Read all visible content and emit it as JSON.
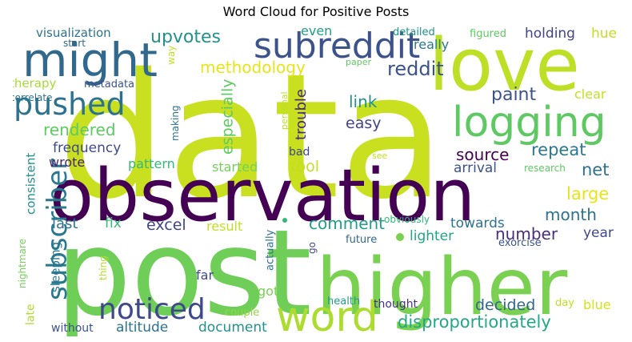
{
  "chart_data": {
    "type": "wordcloud",
    "title": "Word Cloud for Positive Posts",
    "background": "#ffffff",
    "colormap": "viridis",
    "words": [
      {
        "text": "data",
        "color": "#c8e020"
      },
      {
        "text": "post",
        "color": "#6ece58"
      },
      {
        "text": "observation",
        "color": "#440154"
      },
      {
        "text": "higher",
        "color": "#7ad151"
      },
      {
        "text": "love",
        "color": "#bddf26"
      },
      {
        "text": "might",
        "color": "#31688e"
      },
      {
        "text": "logging",
        "color": "#5ec962"
      },
      {
        "text": "subreddit",
        "color": "#3b528b"
      },
      {
        "text": "pushed",
        "color": "#2c728e"
      },
      {
        "text": "subscriber",
        "color": "#2a788e"
      },
      {
        "text": "noticed",
        "color": "#3e4989"
      },
      {
        "text": "word",
        "color": "#addc30"
      },
      {
        "text": "upvotes",
        "color": "#21918c"
      },
      {
        "text": "methodology",
        "color": "#e7e419"
      },
      {
        "text": "reddit",
        "color": "#3b528b"
      },
      {
        "text": "rendered",
        "color": "#5ec962"
      },
      {
        "text": "paint",
        "color": "#3b528b"
      },
      {
        "text": "link",
        "color": "#21918c"
      },
      {
        "text": "trouble",
        "color": "#482878"
      },
      {
        "text": "especially",
        "color": "#5ec962"
      },
      {
        "text": "easy",
        "color": "#414487"
      },
      {
        "text": "source",
        "color": "#440154"
      },
      {
        "text": "repeat",
        "color": "#2a788e"
      },
      {
        "text": "frequency",
        "color": "#3e4989"
      },
      {
        "text": "disproportionately",
        "color": "#22a884"
      },
      {
        "text": "document",
        "color": "#21918c"
      },
      {
        "text": "altitude",
        "color": "#2c728e"
      },
      {
        "text": "decided",
        "color": "#31688e"
      },
      {
        "text": "large",
        "color": "#e7e419"
      },
      {
        "text": "month",
        "color": "#2c728e"
      },
      {
        "text": "comment",
        "color": "#1f9e89"
      },
      {
        "text": "number",
        "color": "#472d7b"
      },
      {
        "text": "excel",
        "color": "#414487"
      },
      {
        "text": "net",
        "color": "#2c728e"
      },
      {
        "text": "tool",
        "color": "#c2df23"
      },
      {
        "text": "pattern",
        "color": "#35b779"
      },
      {
        "text": "wrote",
        "color": "#482173"
      },
      {
        "text": "consistent",
        "color": "#21918c"
      },
      {
        "text": "sleeping",
        "color": "#2a788e"
      },
      {
        "text": "last",
        "color": "#2c728e"
      },
      {
        "text": "fix",
        "color": "#35b779"
      },
      {
        "text": "result",
        "color": "#c2df23"
      },
      {
        "text": "started",
        "color": "#73d056"
      },
      {
        "text": "arrival",
        "color": "#3b528b"
      },
      {
        "text": "towards",
        "color": "#2c728e"
      },
      {
        "text": "lighter",
        "color": "#20a386"
      },
      {
        "text": "year",
        "color": "#3e4989"
      },
      {
        "text": "blue",
        "color": "#d5e21a"
      },
      {
        "text": "got",
        "color": "#7ad151"
      },
      {
        "text": "far",
        "color": "#3e4989"
      },
      {
        "text": "holding",
        "color": "#414487"
      },
      {
        "text": "hue",
        "color": "#c2df23"
      },
      {
        "text": "even",
        "color": "#1f9e89"
      },
      {
        "text": "really",
        "color": "#2a788e"
      },
      {
        "text": "visualization",
        "color": "#2c728e"
      },
      {
        "text": "therapy",
        "color": "#a5db36"
      },
      {
        "text": "metadata",
        "color": "#3b528b"
      },
      {
        "text": "clear",
        "color": "#c2df23"
      },
      {
        "text": "detailed",
        "color": "#21918c"
      },
      {
        "text": "figured",
        "color": "#5ec962"
      },
      {
        "text": "thought",
        "color": "#46337e"
      },
      {
        "text": "thing",
        "color": "#b5de2b"
      },
      {
        "text": "actually",
        "color": "#2c728e"
      },
      {
        "text": "couple",
        "color": "#90d743"
      },
      {
        "text": "health",
        "color": "#1f9e89"
      },
      {
        "text": "day",
        "color": "#c2df23"
      },
      {
        "text": "without",
        "color": "#3b528b"
      },
      {
        "text": "late",
        "color": "#addc30"
      },
      {
        "text": "nightmare",
        "color": "#73d056"
      },
      {
        "text": "future",
        "color": "#31688e"
      },
      {
        "text": "exorcise",
        "color": "#3b528b"
      },
      {
        "text": "obviously",
        "color": "#35b779"
      },
      {
        "text": "research",
        "color": "#5ec962"
      },
      {
        "text": "see",
        "color": "#c2df23"
      },
      {
        "text": "bad",
        "color": "#3e4989"
      },
      {
        "text": "personal",
        "color": "#bddf26"
      },
      {
        "text": "paper",
        "color": "#5ec962"
      },
      {
        "text": "making",
        "color": "#2c728e"
      },
      {
        "text": "way",
        "color": "#c2df23"
      },
      {
        "text": "start",
        "color": "#31688e"
      },
      {
        "text": "correlate",
        "color": "#2c728e"
      },
      {
        "text": "go",
        "color": "#3e4989"
      }
    ]
  }
}
